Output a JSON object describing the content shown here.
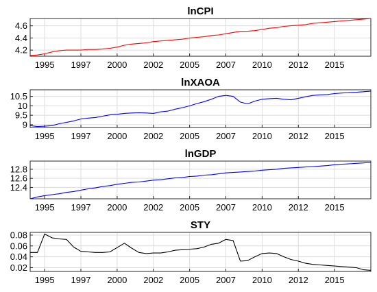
{
  "chart_data": [
    {
      "type": "line",
      "title": "lnCPI",
      "x_tick_labels": [
        "1995",
        "1997",
        "2000",
        "2002",
        "2005",
        "2007",
        "2010",
        "2012",
        "2015"
      ],
      "x_ticks": [
        1995,
        1997.5,
        2000,
        2002.5,
        2005,
        2007.5,
        2010,
        2012.5,
        2015
      ],
      "xlim": [
        1994,
        2017.5
      ],
      "ylim": [
        4.1,
        4.72
      ],
      "y_ticks": [
        4.2,
        4.4,
        4.6
      ],
      "y_tick_labels": [
        "4.2",
        "4.4",
        "4.6"
      ],
      "grid": true,
      "series": [
        {
          "color": "#ff0000",
          "x": [
            1994,
            1994.5,
            1995,
            1995.5,
            1996,
            1996.5,
            1997,
            1997.5,
            1998,
            1998.5,
            1999,
            1999.5,
            2000,
            2000.5,
            2001,
            2001.5,
            2002,
            2002.5,
            2003,
            2003.5,
            2004,
            2004.5,
            2005,
            2005.5,
            2006,
            2006.5,
            2007,
            2007.5,
            2008,
            2008.5,
            2009,
            2009.5,
            2010,
            2010.5,
            2011,
            2011.5,
            2012,
            2012.5,
            2013,
            2013.5,
            2014,
            2014.5,
            2015,
            2015.5,
            2016,
            2016.5,
            2017,
            2017.5
          ],
          "y": [
            4.11,
            4.12,
            4.14,
            4.17,
            4.19,
            4.2,
            4.2,
            4.2,
            4.21,
            4.21,
            4.22,
            4.23,
            4.25,
            4.28,
            4.3,
            4.31,
            4.32,
            4.34,
            4.35,
            4.36,
            4.37,
            4.38,
            4.4,
            4.41,
            4.42,
            4.44,
            4.45,
            4.47,
            4.49,
            4.51,
            4.51,
            4.52,
            4.54,
            4.56,
            4.57,
            4.59,
            4.6,
            4.61,
            4.62,
            4.64,
            4.65,
            4.66,
            4.67,
            4.68,
            4.69,
            4.7,
            4.71,
            4.72
          ]
        }
      ]
    },
    {
      "type": "line",
      "title": "lnXAOA",
      "x_tick_labels": [
        "1995",
        "1997",
        "2000",
        "2002",
        "2005",
        "2007",
        "2010",
        "2012",
        "2015"
      ],
      "x_ticks": [
        1995,
        1997.5,
        2000,
        2002.5,
        2005,
        2007.5,
        2010,
        2012.5,
        2015
      ],
      "xlim": [
        1994,
        2017.5
      ],
      "ylim": [
        8.85,
        10.85
      ],
      "y_ticks": [
        9,
        9.5,
        10,
        10.5
      ],
      "y_tick_labels": [
        "9",
        "9.5",
        "10",
        "10.5"
      ],
      "grid": true,
      "series": [
        {
          "color": "#0000ff",
          "x": [
            1994,
            1994.5,
            1995,
            1995.5,
            1996,
            1996.5,
            1997,
            1997.5,
            1998,
            1998.5,
            1999,
            1999.5,
            2000,
            2000.5,
            2001,
            2001.5,
            2002,
            2002.5,
            2003,
            2003.5,
            2004,
            2004.5,
            2005,
            2005.5,
            2006,
            2006.5,
            2007,
            2007.5,
            2008,
            2008.5,
            2009,
            2009.5,
            2010,
            2010.5,
            2011,
            2011.5,
            2012,
            2012.5,
            2013,
            2013.5,
            2014,
            2014.5,
            2015,
            2015.5,
            2016,
            2016.5,
            2017,
            2017.5
          ],
          "y": [
            8.95,
            8.9,
            8.92,
            8.95,
            9.05,
            9.12,
            9.2,
            9.3,
            9.35,
            9.38,
            9.45,
            9.52,
            9.55,
            9.6,
            9.62,
            9.63,
            9.62,
            9.6,
            9.68,
            9.72,
            9.82,
            9.9,
            10.0,
            10.12,
            10.22,
            10.35,
            10.5,
            10.55,
            10.5,
            10.2,
            10.1,
            10.25,
            10.35,
            10.38,
            10.4,
            10.35,
            10.32,
            10.4,
            10.48,
            10.55,
            10.58,
            10.6,
            10.65,
            10.68,
            10.7,
            10.72,
            10.75,
            10.78
          ]
        }
      ]
    },
    {
      "type": "line",
      "title": "lnGDP",
      "x_tick_labels": [
        "1995",
        "1997",
        "2000",
        "2002",
        "2005",
        "2007",
        "2010",
        "2012",
        "2015"
      ],
      "x_ticks": [
        1995,
        1997.5,
        2000,
        2002.5,
        2005,
        2007.5,
        2010,
        2012.5,
        2015
      ],
      "xlim": [
        1994,
        2017.5
      ],
      "ylim": [
        12.15,
        12.98
      ],
      "y_ticks": [
        12.4,
        12.6,
        12.8
      ],
      "y_tick_labels": [
        "12.4",
        "12.6",
        "12.8"
      ],
      "grid": true,
      "series": [
        {
          "color": "#0000ff",
          "x": [
            1994,
            1994.5,
            1995,
            1995.5,
            1996,
            1996.5,
            1997,
            1997.5,
            1998,
            1998.5,
            1999,
            1999.5,
            2000,
            2000.5,
            2001,
            2001.5,
            2002,
            2002.5,
            2003,
            2003.5,
            2004,
            2004.5,
            2005,
            2005.5,
            2006,
            2006.5,
            2007,
            2007.5,
            2008,
            2008.5,
            2009,
            2009.5,
            2010,
            2010.5,
            2011,
            2011.5,
            2012,
            2012.5,
            2013,
            2013.5,
            2014,
            2014.5,
            2015,
            2015.5,
            2016,
            2016.5,
            2017,
            2017.5
          ],
          "y": [
            12.15,
            12.19,
            12.22,
            12.24,
            12.26,
            12.29,
            12.31,
            12.34,
            12.37,
            12.39,
            12.42,
            12.44,
            12.47,
            12.49,
            12.51,
            12.52,
            12.54,
            12.56,
            12.57,
            12.59,
            12.61,
            12.62,
            12.64,
            12.65,
            12.67,
            12.68,
            12.7,
            12.72,
            12.73,
            12.74,
            12.75,
            12.76,
            12.78,
            12.79,
            12.8,
            12.82,
            12.83,
            12.84,
            12.85,
            12.86,
            12.87,
            12.88,
            12.9,
            12.91,
            12.92,
            12.93,
            12.94,
            12.95
          ]
        }
      ]
    },
    {
      "type": "line",
      "title": "STY",
      "x_tick_labels": [
        "1995",
        "1997",
        "2000",
        "2002",
        "2005",
        "2007",
        "2010",
        "2012",
        "2015"
      ],
      "x_ticks": [
        1995,
        1997.5,
        2000,
        2002.5,
        2005,
        2007.5,
        2010,
        2012.5,
        2015
      ],
      "xlim": [
        1994,
        2017.5
      ],
      "ylim": [
        0.013,
        0.085
      ],
      "y_ticks": [
        0.02,
        0.04,
        0.06,
        0.08
      ],
      "y_tick_labels": [
        "0.02",
        "0.04",
        "0.06",
        "0.08"
      ],
      "grid": true,
      "series": [
        {
          "color": "#000000",
          "x": [
            1994,
            1994.5,
            1995,
            1995.5,
            1996,
            1996.5,
            1997,
            1997.5,
            1998,
            1998.5,
            1999,
            1999.5,
            2000,
            2000.5,
            2001,
            2001.5,
            2002,
            2002.5,
            2003,
            2003.5,
            2004,
            2004.5,
            2005,
            2005.5,
            2006,
            2006.5,
            2007,
            2007.5,
            2008,
            2008.5,
            2009,
            2009.5,
            2010,
            2010.5,
            2011,
            2011.5,
            2012,
            2012.5,
            2013,
            2013.5,
            2014,
            2014.5,
            2015,
            2015.5,
            2016,
            2016.5,
            2017,
            2017.5
          ],
          "y": [
            0.048,
            0.048,
            0.082,
            0.075,
            0.073,
            0.072,
            0.058,
            0.05,
            0.049,
            0.048,
            0.048,
            0.049,
            0.057,
            0.065,
            0.056,
            0.048,
            0.046,
            0.047,
            0.047,
            0.049,
            0.052,
            0.053,
            0.054,
            0.055,
            0.058,
            0.063,
            0.065,
            0.072,
            0.07,
            0.032,
            0.033,
            0.04,
            0.046,
            0.047,
            0.046,
            0.04,
            0.035,
            0.032,
            0.028,
            0.026,
            0.025,
            0.024,
            0.023,
            0.022,
            0.021,
            0.02,
            0.016,
            0.015
          ]
        }
      ]
    }
  ]
}
